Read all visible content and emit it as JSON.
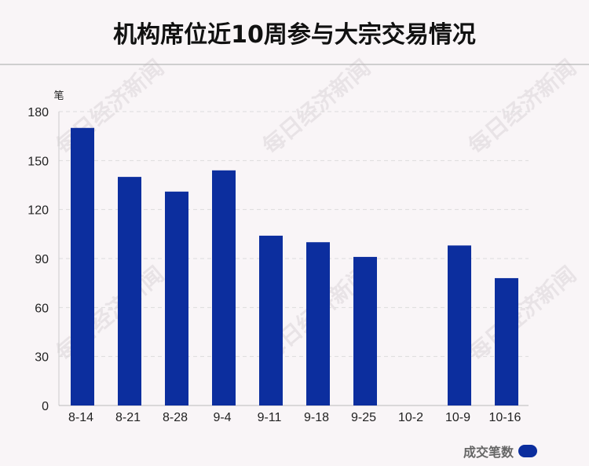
{
  "chart_data": {
    "type": "bar",
    "title": "机构席位近10周参与大宗交易情况",
    "ylabel": "笔",
    "xlabel": "",
    "categories": [
      "8-14",
      "8-21",
      "8-28",
      "9-4",
      "9-11",
      "9-18",
      "9-25",
      "10-2",
      "10-9",
      "10-16"
    ],
    "series": [
      {
        "name": "成交笔数",
        "values": [
          170,
          140,
          131,
          144,
          104,
          100,
          91,
          0,
          98,
          78
        ],
        "color": "#0c2e9e"
      }
    ],
    "ylim": [
      0,
      180
    ],
    "yticks": [
      0,
      30,
      60,
      90,
      120,
      150,
      180
    ],
    "grid": true,
    "legend": "bottom-right"
  },
  "watermark": "每日经济新闻"
}
